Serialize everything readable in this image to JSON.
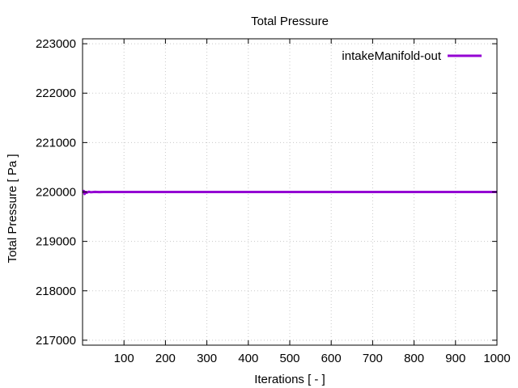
{
  "chart_data": {
    "type": "line",
    "title": "Total Pressure",
    "xlabel": "Iterations [ - ]",
    "ylabel": "Total Pressure [ Pa ]",
    "xlim": [
      0,
      1000
    ],
    "ylim": [
      216900,
      223100
    ],
    "x_ticks": [
      100,
      200,
      300,
      400,
      500,
      600,
      700,
      800,
      900,
      1000
    ],
    "y_ticks": [
      217000,
      218000,
      219000,
      220000,
      221000,
      222000,
      223000
    ],
    "grid": true,
    "legend_position": "top-right",
    "series": [
      {
        "name": "intakeManifold-out",
        "color": "#9400d3",
        "x": [
          1,
          3,
          5,
          8,
          10,
          15,
          20,
          30,
          40,
          50,
          100,
          200,
          300,
          400,
          500,
          600,
          700,
          800,
          900,
          1000
        ],
        "y": [
          219980,
          220020,
          219960,
          220000,
          219985,
          220005,
          219995,
          220002,
          219998,
          220000,
          220000,
          220000,
          220000,
          220000,
          220000,
          220000,
          220000,
          220000,
          220000,
          220000
        ]
      }
    ]
  }
}
